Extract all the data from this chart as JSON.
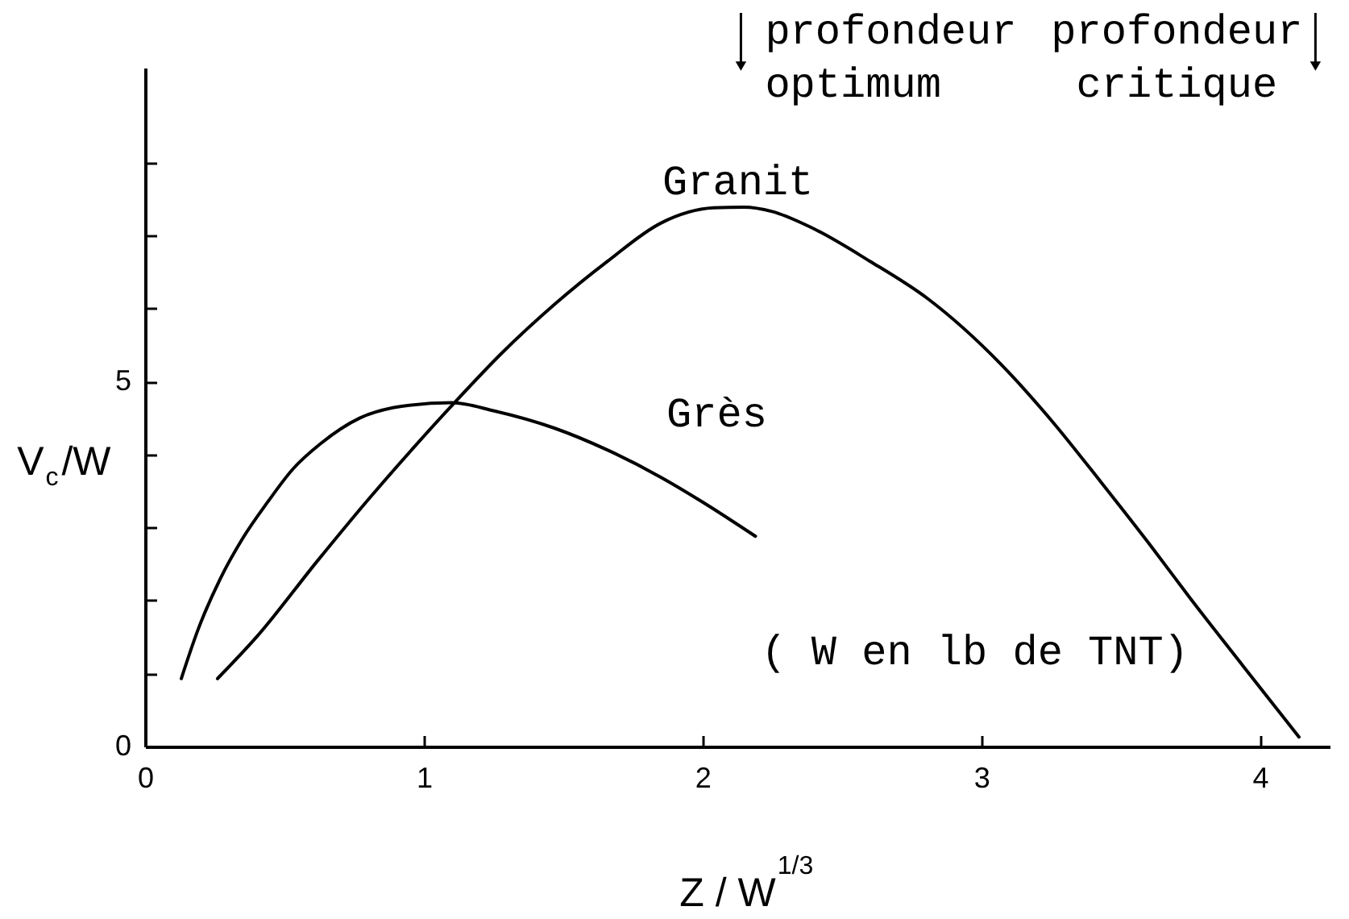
{
  "chart_data": {
    "type": "line",
    "xlabel": "Z / W$^{1/3}$",
    "ylabel": "V$_{c}$/W",
    "xlim": [
      0,
      4.25
    ],
    "xticks": [
      0,
      1,
      2,
      3,
      4
    ],
    "ylim": [
      0,
      9.3
    ],
    "yticks": [
      0,
      {
        "value": 1,
        "label": null
      },
      {
        "value": 2,
        "label": null
      },
      {
        "value": 3,
        "label": null
      },
      {
        "value": 4,
        "label": null
      },
      5,
      {
        "value": 6,
        "label": null
      },
      {
        "value": 7,
        "label": null
      },
      {
        "value": 8,
        "label": null
      }
    ],
    "grid": false,
    "series": [
      {
        "name": "Grès",
        "color": "#000000",
        "x": [
          0.13,
          0.19,
          0.27,
          0.35,
          0.44,
          0.53,
          0.63,
          0.77,
          0.92,
          1.1,
          1.25,
          1.47,
          1.66,
          1.85,
          2.0,
          2.19
        ],
        "values": [
          0.93,
          1.6,
          2.3,
          2.85,
          3.35,
          3.8,
          4.15,
          4.5,
          4.66,
          4.71,
          4.6,
          4.36,
          4.06,
          3.69,
          3.35,
          2.88
        ]
      },
      {
        "name": "Granit",
        "color": "#000000",
        "x": [
          0.26,
          0.4,
          0.62,
          0.8,
          0.96,
          1.11,
          1.28,
          1.47,
          1.66,
          1.85,
          2.04,
          2.15,
          2.25,
          2.38,
          2.6,
          2.81,
          3.07,
          3.26,
          3.43,
          3.62,
          3.75,
          3.94,
          4.14
        ],
        "values": [
          0.93,
          1.5,
          2.55,
          3.38,
          4.08,
          4.71,
          5.39,
          6.06,
          6.65,
          7.17,
          7.38,
          7.39,
          7.33,
          7.13,
          6.65,
          6.13,
          5.24,
          4.43,
          3.62,
          2.69,
          2.03,
          1.1,
          0.13
        ]
      }
    ],
    "annotations": [
      "profondeur optimum",
      "profondeur critique",
      "( W en lb de TNT)"
    ]
  }
}
